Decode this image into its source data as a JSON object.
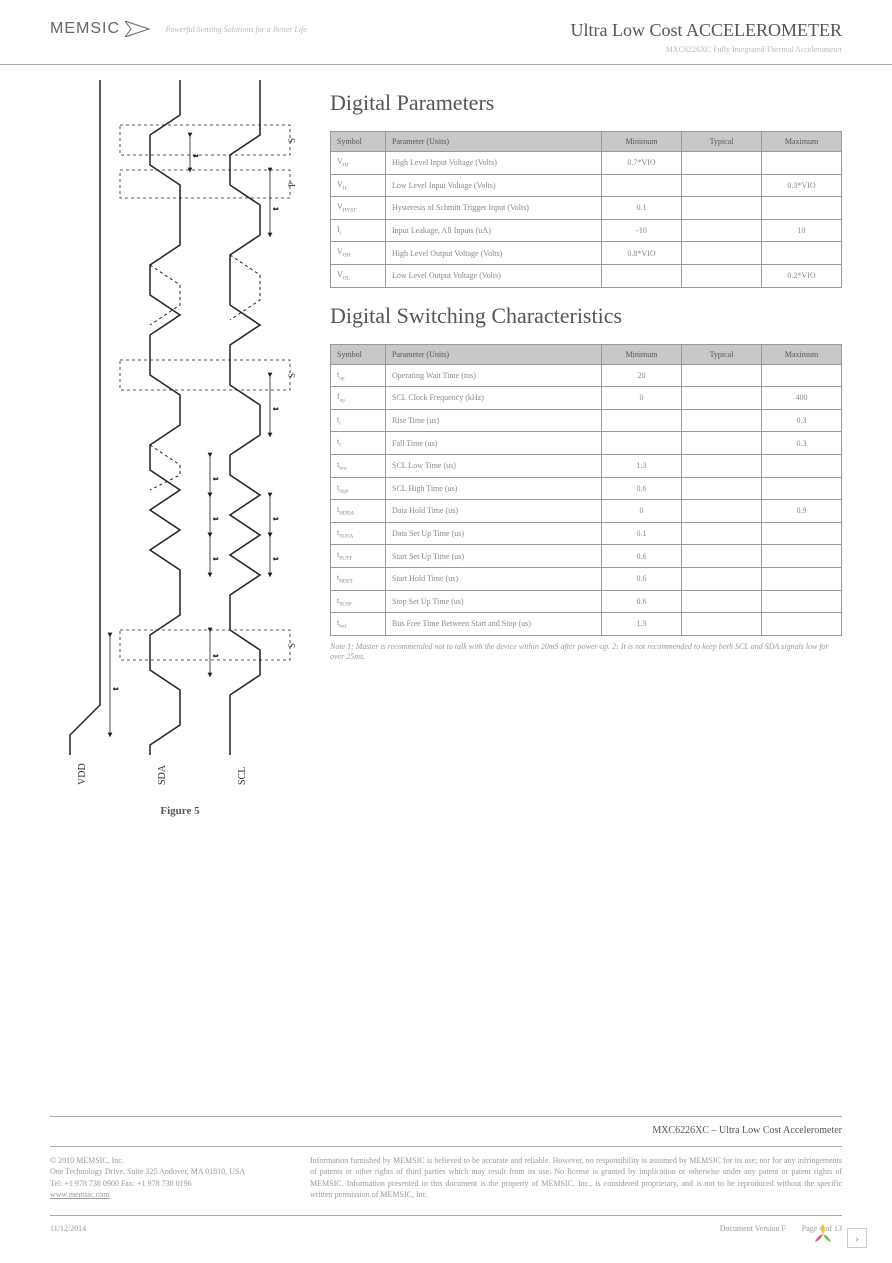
{
  "header": {
    "logo": "MEMSIC",
    "tagline": "Powerful Sensing Solutions for a Better Life",
    "title": "Ultra Low Cost ACCELEROMETER",
    "subtitle": "MXC6226XC  Fully Integrated Thermal Accelerometer"
  },
  "figure": {
    "caption": "Figure 5",
    "signals": [
      "VDD",
      "SDA",
      "SCL"
    ],
    "labels": [
      "S",
      "P",
      "S",
      "S"
    ],
    "timing_marks": [
      "t",
      "t",
      "t",
      "t",
      "t",
      "t",
      "t",
      "t",
      "t",
      "t"
    ]
  },
  "table1": {
    "heading": "Digital Parameters",
    "columns": [
      "Symbol",
      "Parameter (Units)",
      "Minimum",
      "Typical",
      "Maximum"
    ],
    "rows": [
      {
        "sym": "V<sub>IH</sub>",
        "param": "High Level Input Voltage (Volts)",
        "min": "0.7*VIO",
        "typ": "",
        "max": ""
      },
      {
        "sym": "V<sub>IL</sub>",
        "param": "Low Level Input Voltage (Volts)",
        "min": "",
        "typ": "",
        "max": "0.3*VIO"
      },
      {
        "sym": "V<sub>HYST</sub>",
        "param": "Hysteresis of Schmitt Trigger Input (Volts)",
        "min": "0.1",
        "typ": "",
        "max": ""
      },
      {
        "sym": "I<sub>i</sub>",
        "param": "Input Leakage, All Inputs (uA)",
        "min": "-10",
        "typ": "",
        "max": "10"
      },
      {
        "sym": "V<sub>OH</sub>",
        "param": "High Level Output Voltage (Volts)",
        "min": "0.8*VIO",
        "typ": "",
        "max": ""
      },
      {
        "sym": "V<sub>OL</sub>",
        "param": "Low Level Output Voltage (Volts)",
        "min": "",
        "typ": "",
        "max": "0.2*VIO"
      }
    ]
  },
  "table2": {
    "heading": "Digital Switching Characteristics",
    "columns": [
      "Symbol",
      "Parameter (Units)",
      "Minimum",
      "Typical",
      "Maximum"
    ],
    "rows": [
      {
        "sym": "t<sub>op</sub>",
        "param": "Operating Wait Time (ms)",
        "min": "20",
        "typ": "",
        "max": ""
      },
      {
        "sym": "f<sub>op</sub>",
        "param": "SCL Clock Frequency (kHz)",
        "min": "0",
        "typ": "",
        "max": "400"
      },
      {
        "sym": "t<sub>r</sub>",
        "param": "Rise Time (us)",
        "min": "",
        "typ": "",
        "max": "0.3"
      },
      {
        "sym": "t<sub>f</sub>",
        "param": "Fall Time (us)",
        "min": "",
        "typ": "",
        "max": "0.3"
      },
      {
        "sym": "t<sub>low</sub>",
        "param": "SCL Low Time (us)",
        "min": "1.3",
        "typ": "",
        "max": ""
      },
      {
        "sym": "t<sub>high</sub>",
        "param": "SCL High Time (us)",
        "min": "0.6",
        "typ": "",
        "max": ""
      },
      {
        "sym": "t<sub>HDDA</sub>",
        "param": "Data Hold Time (us)",
        "min": "0",
        "typ": "",
        "max": "0.9"
      },
      {
        "sym": "t<sub>SUDA</sub>",
        "param": "Data Set Up Time (us)",
        "min": "0.1",
        "typ": "",
        "max": ""
      },
      {
        "sym": "t<sub>SUST</sub>",
        "param": "Start Set Up Time (us)",
        "min": "0.6",
        "typ": "",
        "max": ""
      },
      {
        "sym": "t<sub>HDST</sub>",
        "param": "Start Hold Time (us)",
        "min": "0.6",
        "typ": "",
        "max": ""
      },
      {
        "sym": "t<sub>SUSP</sub>",
        "param": "Stop Set Up Time (us)",
        "min": "0.6",
        "typ": "",
        "max": ""
      },
      {
        "sym": "t<sub>buf</sub>",
        "param": "Bus Free Time Between Start and Stop (us)",
        "min": "1.3",
        "typ": "",
        "max": ""
      }
    ],
    "note": "Note 1: Master is recommended not to talk with the device within 20mS after power-up. 2: It is not recommended to keep both SCL and SDA signals low for over 25ms."
  },
  "footer": {
    "part": "MXC6226XC – Ultra Low Cost Accelerometer",
    "copyright": "© 2010 MEMSIC, Inc.",
    "address": "One Technology Drive, Suite 325 Andover, MA 01810, USA",
    "tel": "Tel: +1 978 738 0900  Fax: +1 978 738 0196",
    "url": "www.memsic.com",
    "disclaimer": "Information furnished by MEMSIC is believed to be accurate and reliable. However, no responsibility is assumed by MEMSIC for its use; nor for any infringements of patents or other rights of third parties which may result from its use. No license is granted by implication or otherwise under any patent or patent rights of MEMSIC. Information presented in this document is the property of MEMSIC, Inc., is considered proprietary, and is not to be reproduced without the specific written permission of MEMSIC, Inc.",
    "date": "11/12/2014",
    "version": "Document Version   F",
    "page": "Page 4 of 13"
  }
}
